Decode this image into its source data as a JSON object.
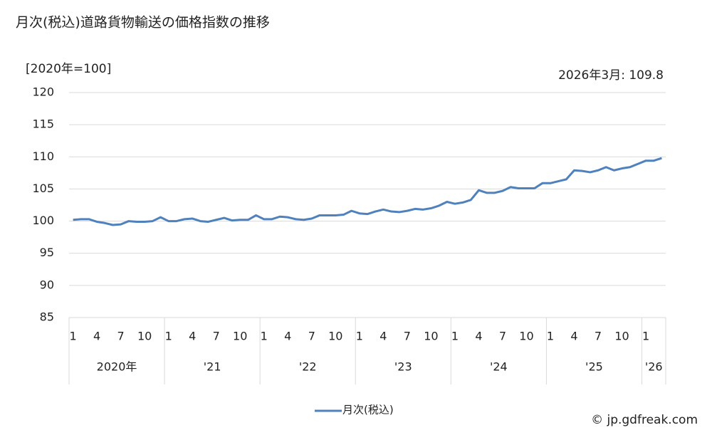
{
  "chart_data": {
    "type": "line",
    "title": "月次(税込)道路貨物輸送の価格指数の推移",
    "y_axis_label": "[2020年=100]",
    "annotation": "2026年3月: 109.8",
    "credit": "© jp.gdfreak.com",
    "categories": [
      "1",
      null,
      null,
      "4",
      null,
      null,
      "7",
      null,
      null,
      "10",
      null,
      null,
      "1",
      null,
      null,
      "4",
      null,
      null,
      "7",
      null,
      null,
      "10",
      null,
      null,
      "1",
      null,
      null,
      "4",
      null,
      null,
      "7",
      null,
      null,
      "10",
      null,
      null,
      "1",
      null,
      null,
      "4",
      null,
      null,
      "7",
      null,
      null,
      "10",
      null,
      null,
      "1",
      null,
      null,
      "4",
      null,
      null,
      "7",
      null,
      null,
      "10",
      null,
      null,
      "1",
      null,
      null,
      "4",
      null,
      null,
      "7",
      null,
      null,
      "10",
      null,
      null,
      "1",
      null,
      null
    ],
    "year_labels": [
      "2020年",
      "'21",
      "'22",
      "'23",
      "'24",
      "'25",
      "'26"
    ],
    "series": [
      {
        "name": "月次(税込)",
        "color": "#4f81bd",
        "values": [
          100.2,
          100.3,
          100.3,
          99.9,
          99.7,
          99.4,
          99.5,
          100.0,
          99.9,
          99.9,
          100.0,
          100.6,
          100.0,
          100.0,
          100.3,
          100.4,
          100.0,
          99.9,
          100.2,
          100.5,
          100.1,
          100.2,
          100.2,
          100.9,
          100.3,
          100.3,
          100.7,
          100.6,
          100.3,
          100.2,
          100.4,
          100.9,
          100.9,
          100.9,
          101.0,
          101.6,
          101.2,
          101.1,
          101.5,
          101.8,
          101.5,
          101.4,
          101.6,
          101.9,
          101.8,
          102.0,
          102.4,
          103.0,
          102.7,
          102.9,
          103.3,
          104.8,
          104.4,
          104.4,
          104.7,
          105.3,
          105.1,
          105.1,
          105.1,
          105.9,
          105.9,
          106.2,
          106.5,
          107.9,
          107.8,
          107.6,
          107.9,
          108.4,
          107.9,
          108.2,
          108.4,
          108.9,
          109.4,
          109.4,
          109.8
        ]
      }
    ],
    "ylim": [
      85,
      120
    ],
    "yticks": [
      85,
      90,
      95,
      100,
      105,
      110,
      115,
      120
    ],
    "grid": true
  }
}
